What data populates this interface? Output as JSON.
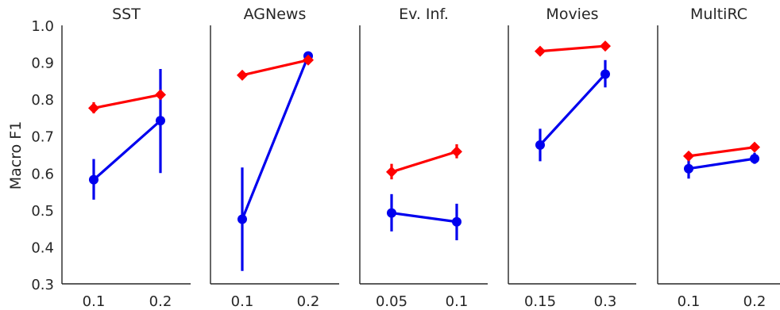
{
  "figure": {
    "ylabel": "Macro F1",
    "yticks": [
      "0.3",
      "0.4",
      "0.5",
      "0.6",
      "0.7",
      "0.8",
      "0.9",
      "1.0"
    ],
    "colors": {
      "red": "#ff0000",
      "blue": "#0000ee",
      "axis": "#262626"
    }
  },
  "chart_data": [
    {
      "type": "line",
      "title": "SST",
      "categories": [
        "0.1",
        "0.2"
      ],
      "ylim": [
        0.3,
        1.0
      ],
      "series": [
        {
          "color": "#ff0000",
          "marker": "diamond",
          "values": [
            0.776,
            0.812
          ],
          "err_low": [
            0.762,
            0.802
          ],
          "err_high": [
            0.792,
            0.822
          ]
        },
        {
          "color": "#0000ee",
          "marker": "circle",
          "values": [
            0.582,
            0.742
          ],
          "err_low": [
            0.528,
            0.6
          ],
          "err_high": [
            0.638,
            0.882
          ]
        }
      ]
    },
    {
      "type": "line",
      "title": "AGNews",
      "categories": [
        "0.1",
        "0.2"
      ],
      "ylim": [
        0.3,
        1.0
      ],
      "series": [
        {
          "color": "#ff0000",
          "marker": "diamond",
          "values": [
            0.865,
            0.906
          ],
          "err_low": [
            0.86,
            0.902
          ],
          "err_high": [
            0.87,
            0.91
          ]
        },
        {
          "color": "#0000ee",
          "marker": "circle",
          "values": [
            0.475,
            0.917
          ],
          "err_low": [
            0.335,
            0.91
          ],
          "err_high": [
            0.615,
            0.923
          ]
        }
      ]
    },
    {
      "type": "line",
      "title": "Ev. Inf.",
      "categories": [
        "0.05",
        "0.1"
      ],
      "ylim": [
        0.3,
        1.0
      ],
      "series": [
        {
          "color": "#ff0000",
          "marker": "diamond",
          "values": [
            0.603,
            0.658
          ],
          "err_low": [
            0.583,
            0.64
          ],
          "err_high": [
            0.625,
            0.678
          ]
        },
        {
          "color": "#0000ee",
          "marker": "circle",
          "values": [
            0.492,
            0.468
          ],
          "err_low": [
            0.442,
            0.418
          ],
          "err_high": [
            0.543,
            0.517
          ]
        }
      ]
    },
    {
      "type": "line",
      "title": "Movies",
      "categories": [
        "0.15",
        "0.3"
      ],
      "ylim": [
        0.3,
        1.0
      ],
      "series": [
        {
          "color": "#ff0000",
          "marker": "diamond",
          "values": [
            0.93,
            0.944
          ],
          "err_low": [
            0.925,
            0.94
          ],
          "err_high": [
            0.935,
            0.948
          ]
        },
        {
          "color": "#0000ee",
          "marker": "circle",
          "values": [
            0.676,
            0.868
          ],
          "err_low": [
            0.632,
            0.832
          ],
          "err_high": [
            0.72,
            0.906
          ]
        }
      ]
    },
    {
      "type": "line",
      "title": "MultiRC",
      "categories": [
        "0.1",
        "0.2"
      ],
      "ylim": [
        0.3,
        1.0
      ],
      "series": [
        {
          "color": "#ff0000",
          "marker": "diamond",
          "values": [
            0.646,
            0.67
          ],
          "err_low": [
            0.64,
            0.665
          ],
          "err_high": [
            0.652,
            0.675
          ]
        },
        {
          "color": "#0000ee",
          "marker": "circle",
          "values": [
            0.612,
            0.639
          ],
          "err_low": [
            0.585,
            0.625
          ],
          "err_high": [
            0.64,
            0.655
          ]
        }
      ]
    }
  ]
}
